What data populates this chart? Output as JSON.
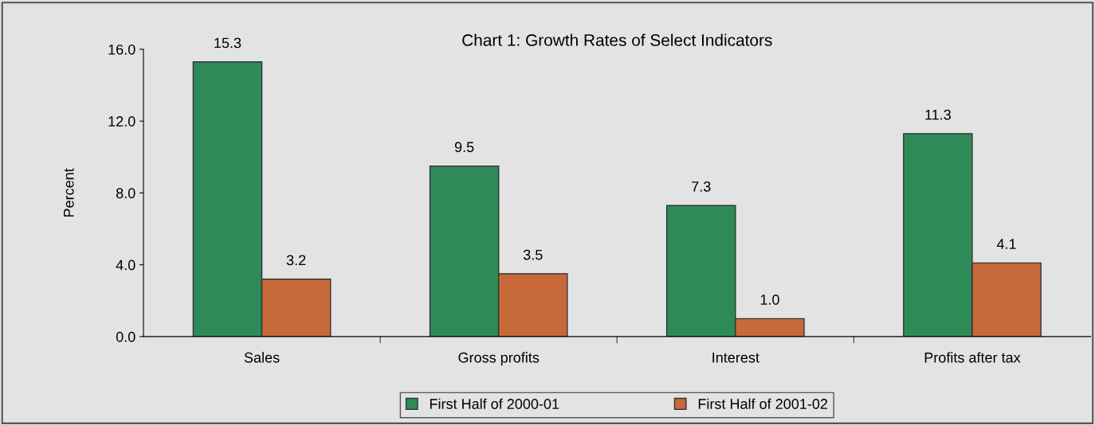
{
  "chart_data": {
    "type": "bar",
    "title": "Chart 1: Growth Rates of Select Indicators",
    "ylabel": "Percent",
    "categories": [
      "Sales",
      "Gross profits",
      "Interest",
      "Profits after tax"
    ],
    "series": [
      {
        "name": "First Half of 2000-01",
        "color": "#2e8b57",
        "values": [
          15.3,
          9.5,
          7.3,
          11.3
        ],
        "value_labels": [
          "15.3",
          "9.5",
          "7.3",
          "11.3"
        ]
      },
      {
        "name": "First Half of 2001-02",
        "color": "#c8693a",
        "values": [
          3.2,
          3.5,
          1.0,
          4.1
        ],
        "value_labels": [
          "3.2",
          "3.5",
          "1.0",
          "4.1"
        ]
      }
    ],
    "ylim": [
      0,
      16
    ],
    "yticks": [
      {
        "value": 0,
        "label": "0.0"
      },
      {
        "value": 4,
        "label": "4.0"
      },
      {
        "value": 8,
        "label": "8.0"
      },
      {
        "value": 12,
        "label": "12.0"
      },
      {
        "value": 16,
        "label": "16.0"
      }
    ],
    "grid": false,
    "legend": "bottom"
  }
}
